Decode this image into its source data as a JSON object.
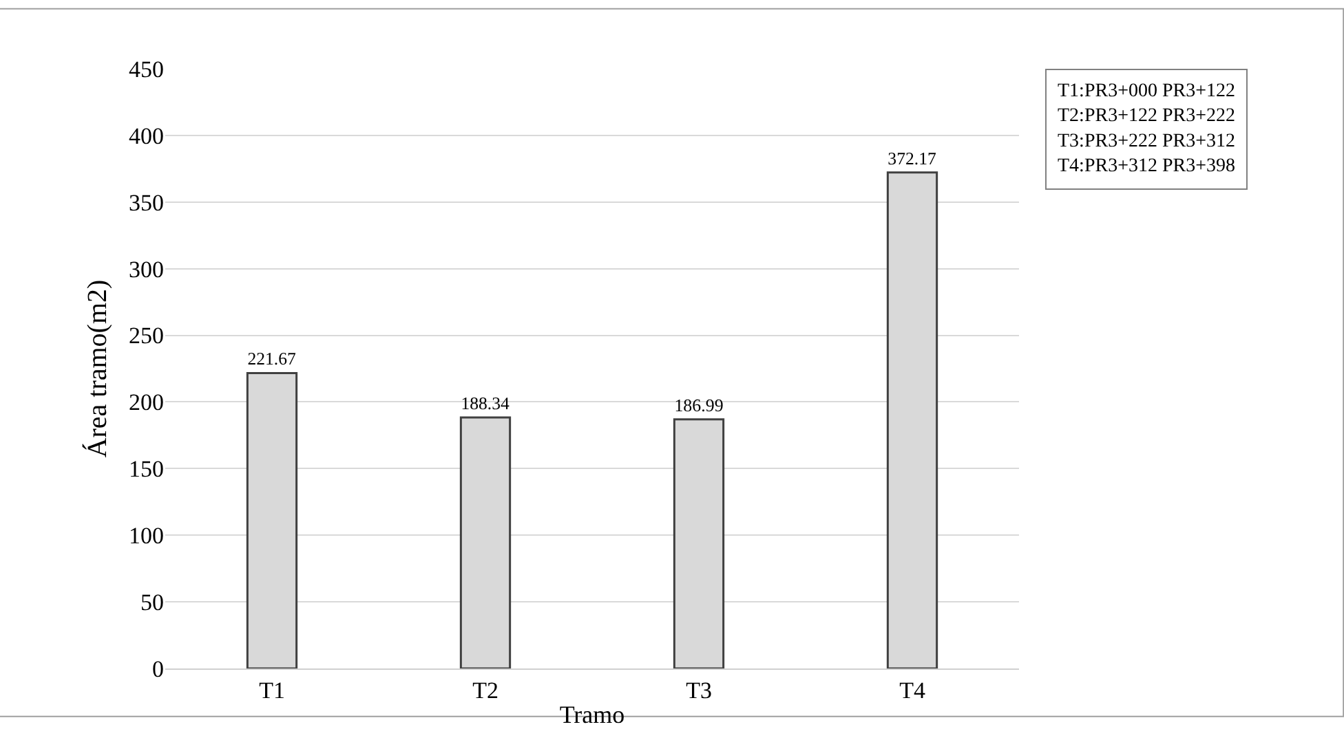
{
  "chart_data": {
    "type": "bar",
    "categories": [
      "T1",
      "T2",
      "T3",
      "T4"
    ],
    "values": [
      221.67,
      188.34,
      186.99,
      372.17
    ],
    "color": "#d9d9d9",
    "xlabel": "Tramo",
    "ylabel": "Área tramo(m2)",
    "ylim": [
      0,
      450
    ],
    "yticks": [
      0,
      50,
      100,
      150,
      200,
      250,
      300,
      350,
      400,
      450
    ],
    "grid": "y",
    "data_labels": true,
    "legend": false,
    "annotations": [
      "T1:PR3+000 PR3+122\nT2:PR3+122 PR3+222\nT3:PR3+222 PR3+312\nT4:PR3+312 PR3+398"
    ]
  }
}
